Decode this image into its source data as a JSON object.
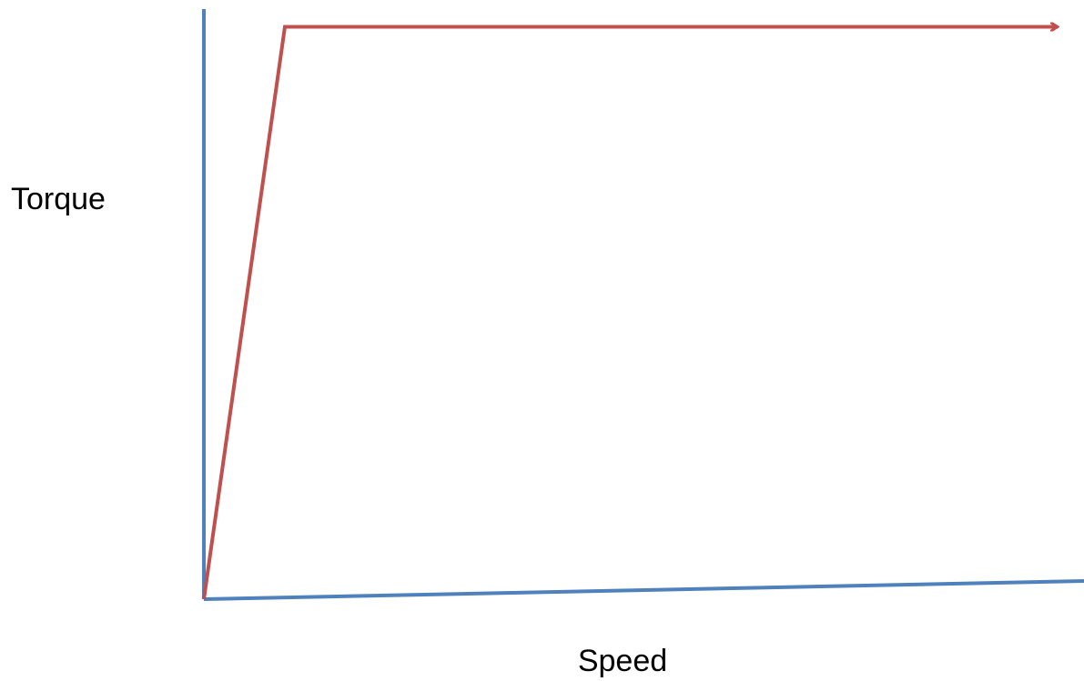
{
  "chart_data": {
    "type": "line",
    "title": "",
    "xlabel": "Speed",
    "ylabel": "Torque",
    "grid": false,
    "legend": "none",
    "tick_labels": false,
    "xlim": [
      0,
      100
    ],
    "ylim": [
      0,
      100
    ],
    "series": [
      {
        "x": [
          0,
          9.2,
          97
        ],
        "y": [
          0,
          97,
          97
        ],
        "color": "#c0504d",
        "end_marker": "arrow"
      }
    ],
    "axis_color": "#4f81bd"
  }
}
